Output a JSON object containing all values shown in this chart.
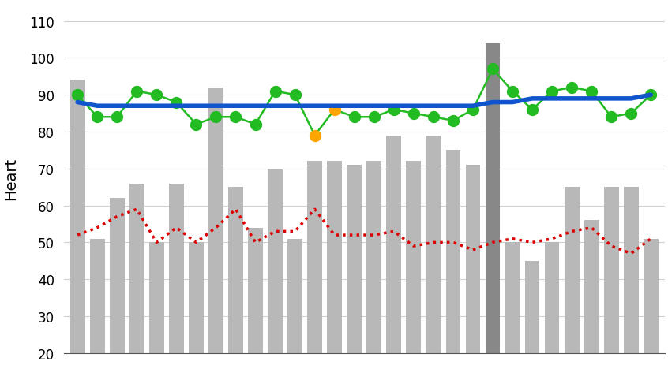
{
  "n_bars": 30,
  "bar_heights": [
    94,
    51,
    62,
    66,
    50,
    66,
    50,
    92,
    65,
    54,
    70,
    51,
    72,
    72,
    71,
    72,
    79,
    72,
    79,
    75,
    71,
    104,
    50,
    45,
    50,
    65,
    56,
    65,
    65,
    51
  ],
  "bar_color": "#b8b8b8",
  "bar_dark_indices": [
    21
  ],
  "bar_dark_color": "#888888",
  "hrv_values": [
    90,
    84,
    84,
    91,
    90,
    88,
    82,
    84,
    84,
    82,
    91,
    90,
    79,
    86,
    84,
    84,
    86,
    85,
    84,
    83,
    86,
    97,
    91,
    86,
    91,
    92,
    91,
    84,
    85,
    90
  ],
  "hrv_orange_indices": [
    12,
    13
  ],
  "hrv_green_color": "#22bb22",
  "hrv_orange_color": "#FFA500",
  "rhr_values": [
    52,
    54,
    57,
    59,
    50,
    54,
    50,
    54,
    59,
    50,
    53,
    53,
    59,
    52,
    52,
    52,
    53,
    49,
    50,
    50,
    48,
    50,
    51,
    50,
    51,
    53,
    54,
    49,
    47,
    51
  ],
  "rhr_color": "#dd0000",
  "moving_avg": [
    88,
    87,
    87,
    87,
    87,
    87,
    87,
    87,
    87,
    87,
    87,
    87,
    87,
    87,
    87,
    87,
    87,
    87,
    87,
    87,
    87,
    88,
    88,
    89,
    89,
    89,
    89,
    89,
    89,
    90
  ],
  "moving_avg_color": "#1155cc",
  "ylim": [
    20,
    115
  ],
  "yticks": [
    20,
    30,
    40,
    50,
    60,
    70,
    80,
    90,
    100,
    110
  ],
  "ylabel": "Heart",
  "background_color": "#ffffff",
  "grid_color": "#d0d0d0"
}
